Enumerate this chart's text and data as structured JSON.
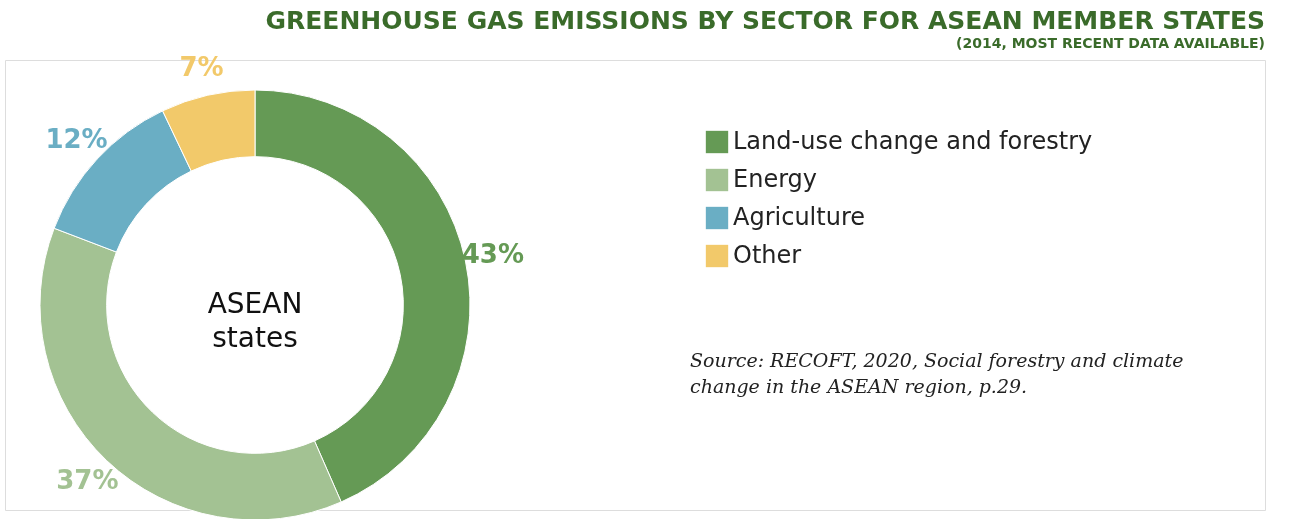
{
  "chart_data": {
    "type": "donut",
    "title": "GREENHOUSE GAS EMISSIONS BY SECTOR FOR ASEAN MEMBER STATES",
    "subtitle": "(2014, MOST RECENT DATA AVAILABLE)",
    "categories": [
      "Land-use change and forestry",
      "Energy",
      "Agriculture",
      "Other"
    ],
    "values": [
      43,
      37,
      12,
      7
    ],
    "colors": [
      "#659a55",
      "#a3c293",
      "#6aaec4",
      "#f2c96a"
    ],
    "value_labels": [
      "43%",
      "37%",
      "12%",
      "7%"
    ],
    "legend": "right",
    "annotations": [
      "ASEAN states",
      "Source: RECOFT, 2020, Social forestry and climate change in the ASEAN region, p.29."
    ]
  }
}
